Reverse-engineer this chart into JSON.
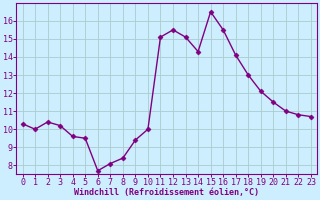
{
  "x": [
    0,
    1,
    2,
    3,
    4,
    5,
    6,
    7,
    8,
    9,
    10,
    11,
    12,
    13,
    14,
    15,
    16,
    17,
    18,
    19,
    20,
    21,
    22,
    23
  ],
  "y": [
    10.3,
    10.0,
    10.4,
    10.2,
    9.6,
    9.5,
    7.7,
    8.1,
    8.4,
    9.4,
    10.0,
    15.1,
    15.5,
    15.1,
    14.3,
    16.5,
    15.5,
    14.1,
    13.0,
    12.1,
    11.5,
    11.0,
    10.8,
    10.7
  ],
  "line_color": "#800080",
  "marker": "D",
  "markersize": 2.5,
  "linewidth": 1.0,
  "bg_color": "#cceeff",
  "grid_color": "#aacccc",
  "xlabel": "Windchill (Refroidissement éolien,°C)",
  "xlim": [
    -0.5,
    23.5
  ],
  "ylim": [
    7.5,
    17.0
  ],
  "yticks": [
    8,
    9,
    10,
    11,
    12,
    13,
    14,
    15,
    16
  ],
  "xticks": [
    0,
    1,
    2,
    3,
    4,
    5,
    6,
    7,
    8,
    9,
    10,
    11,
    12,
    13,
    14,
    15,
    16,
    17,
    18,
    19,
    20,
    21,
    22,
    23
  ],
  "tick_color": "#800080",
  "label_color": "#800080",
  "tick_fontsize": 6.0,
  "xlabel_fontsize": 6.0
}
